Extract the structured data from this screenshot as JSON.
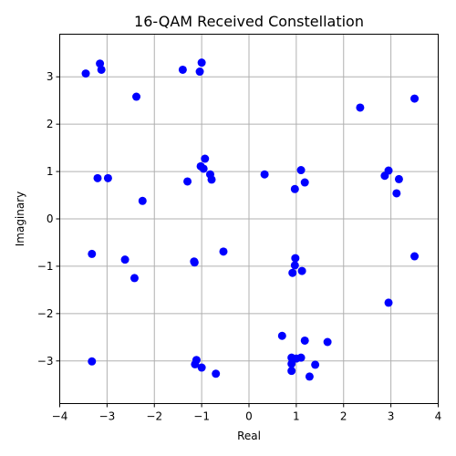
{
  "chart_data": {
    "type": "scatter",
    "title": "16-QAM Received Constellation",
    "xlabel": "Real",
    "ylabel": "Imaginary",
    "xlim": [
      -4,
      4
    ],
    "ylim": [
      -3.9,
      3.9
    ],
    "xticks": [
      -4,
      -3,
      -2,
      -1,
      0,
      1,
      2,
      3,
      4
    ],
    "yticks": [
      -3,
      -2,
      -1,
      0,
      1,
      2,
      3
    ],
    "xtick_labels": [
      "−4",
      "−3",
      "−2",
      "−1",
      "0",
      "1",
      "2",
      "3",
      "4"
    ],
    "ytick_labels": [
      "−3",
      "−2",
      "−1",
      "0",
      "1",
      "2",
      "3"
    ],
    "grid": true,
    "marker_color": "#0000ff",
    "points": [
      [
        -3.45,
        3.07
      ],
      [
        -3.15,
        3.28
      ],
      [
        -3.12,
        3.15
      ],
      [
        -1.4,
        3.15
      ],
      [
        -1.0,
        3.3
      ],
      [
        -1.04,
        3.11
      ],
      [
        -2.38,
        2.58
      ],
      [
        2.35,
        2.35
      ],
      [
        3.5,
        2.54
      ],
      [
        -3.2,
        0.86
      ],
      [
        -2.98,
        0.86
      ],
      [
        -2.25,
        0.38
      ],
      [
        -1.3,
        0.79
      ],
      [
        -0.93,
        1.27
      ],
      [
        -1.02,
        1.11
      ],
      [
        -0.96,
        1.06
      ],
      [
        -0.82,
        0.94
      ],
      [
        -0.79,
        0.83
      ],
      [
        0.33,
        0.94
      ],
      [
        0.97,
        0.63
      ],
      [
        1.1,
        1.03
      ],
      [
        1.18,
        0.77
      ],
      [
        2.87,
        0.91
      ],
      [
        2.95,
        1.02
      ],
      [
        3.12,
        0.54
      ],
      [
        3.17,
        0.84
      ],
      [
        -3.32,
        -0.74
      ],
      [
        -2.62,
        -0.86
      ],
      [
        -2.42,
        -1.25
      ],
      [
        -1.16,
        -0.9
      ],
      [
        -1.15,
        -0.92
      ],
      [
        -0.54,
        -0.69
      ],
      [
        0.98,
        -0.83
      ],
      [
        0.97,
        -0.98
      ],
      [
        0.92,
        -1.14
      ],
      [
        1.12,
        -1.1
      ],
      [
        3.5,
        -0.79
      ],
      [
        2.95,
        -1.77
      ],
      [
        -3.32,
        -3.01
      ],
      [
        -1.11,
        -2.98
      ],
      [
        -1.14,
        -3.07
      ],
      [
        -1.0,
        -3.14
      ],
      [
        -0.7,
        -3.27
      ],
      [
        0.7,
        -2.47
      ],
      [
        0.9,
        -2.93
      ],
      [
        0.9,
        -3.06
      ],
      [
        0.9,
        -3.21
      ],
      [
        1.0,
        -2.95
      ],
      [
        1.1,
        -2.93
      ],
      [
        1.18,
        -2.57
      ],
      [
        1.28,
        -3.33
      ],
      [
        1.4,
        -3.08
      ],
      [
        1.66,
        -2.6
      ]
    ]
  }
}
